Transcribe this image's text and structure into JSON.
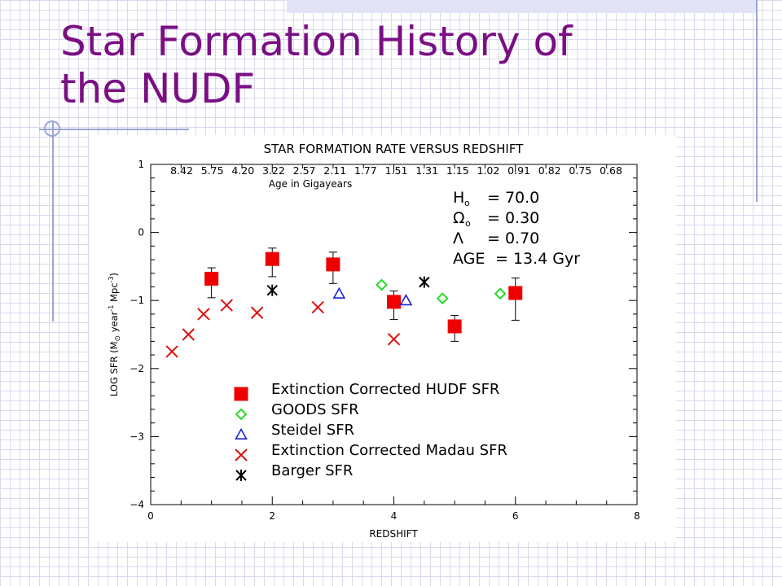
{
  "slide": {
    "title": "Star Formation History of the NUDF"
  },
  "chart_data": {
    "type": "scatter",
    "title": "STAR FORMATION RATE VERSUS REDSHIFT",
    "xlabel": "REDSHIFT",
    "ylabel": "LOG SFR (M",
    "ylabel_sub": "⊙",
    "ylabel_mid": " year",
    "ylabel_sup1": "-1",
    "ylabel_mid2": " Mpc",
    "ylabel_sup2": "-3",
    "ylabel_end": ")",
    "xlim": [
      0,
      8
    ],
    "ylim": [
      -4,
      1
    ],
    "xticks": [
      0,
      2,
      4,
      6,
      8
    ],
    "yticks": [
      1,
      0,
      -1,
      -2,
      -3,
      -4
    ],
    "top_axis": {
      "label": "Age in Gigayears",
      "values": [
        "8.42",
        "5.75",
        "4.20",
        "3.22",
        "2.57",
        "2.11",
        "1.77",
        "1.51",
        "1.31",
        "1.15",
        "1.02",
        "0.91",
        "0.82",
        "0.75",
        "0.68"
      ]
    },
    "params": [
      {
        "name": "H",
        "sub": "o",
        "value": "= 70.0"
      },
      {
        "name": "Ω",
        "sub": "o",
        "value": "= 0.30"
      },
      {
        "name": "Λ",
        "sub": "",
        "value": "= 0.70"
      },
      {
        "name": "AGE",
        "sub": "",
        "value": "= 13.4 Gyr"
      }
    ],
    "series": [
      {
        "name": "Extinction Corrected HUDF SFR",
        "marker": "filled-square",
        "color": "#ee0000",
        "points": [
          {
            "x": 1.0,
            "y": -0.68,
            "yerr_hi": 0.16,
            "yerr_lo": 0.28
          },
          {
            "x": 2.0,
            "y": -0.39,
            "yerr_hi": 0.16,
            "yerr_lo": 0.26
          },
          {
            "x": 3.0,
            "y": -0.47,
            "yerr_hi": 0.18,
            "yerr_lo": 0.28
          },
          {
            "x": 4.0,
            "y": -1.02,
            "yerr_hi": 0.16,
            "yerr_lo": 0.26
          },
          {
            "x": 5.0,
            "y": -1.38,
            "yerr_hi": 0.16,
            "yerr_lo": 0.22
          },
          {
            "x": 6.0,
            "y": -0.89,
            "yerr_hi": 0.22,
            "yerr_lo": 0.4
          }
        ]
      },
      {
        "name": "GOODS SFR",
        "marker": "diamond",
        "color": "#22dd22",
        "points": [
          {
            "x": 3.8,
            "y": -0.77
          },
          {
            "x": 4.8,
            "y": -0.97
          },
          {
            "x": 5.75,
            "y": -0.9
          }
        ]
      },
      {
        "name": "Steidel SFR",
        "marker": "triangle",
        "color": "#1a22cc",
        "points": [
          {
            "x": 3.1,
            "y": -0.9
          },
          {
            "x": 4.2,
            "y": -1.0
          }
        ]
      },
      {
        "name": "Extinction Corrected Madau SFR",
        "marker": "x",
        "color": "#dd1111",
        "points": [
          {
            "x": 0.35,
            "y": -1.75
          },
          {
            "x": 0.62,
            "y": -1.5
          },
          {
            "x": 0.87,
            "y": -1.2
          },
          {
            "x": 1.25,
            "y": -1.07
          },
          {
            "x": 1.75,
            "y": -1.18
          },
          {
            "x": 2.75,
            "y": -1.1
          },
          {
            "x": 4.0,
            "y": -1.57
          }
        ]
      },
      {
        "name": "Barger SFR",
        "marker": "asterisk",
        "color": "#000000",
        "points": [
          {
            "x": 2.0,
            "y": -0.85
          },
          {
            "x": 4.5,
            "y": -0.73
          }
        ]
      }
    ]
  }
}
